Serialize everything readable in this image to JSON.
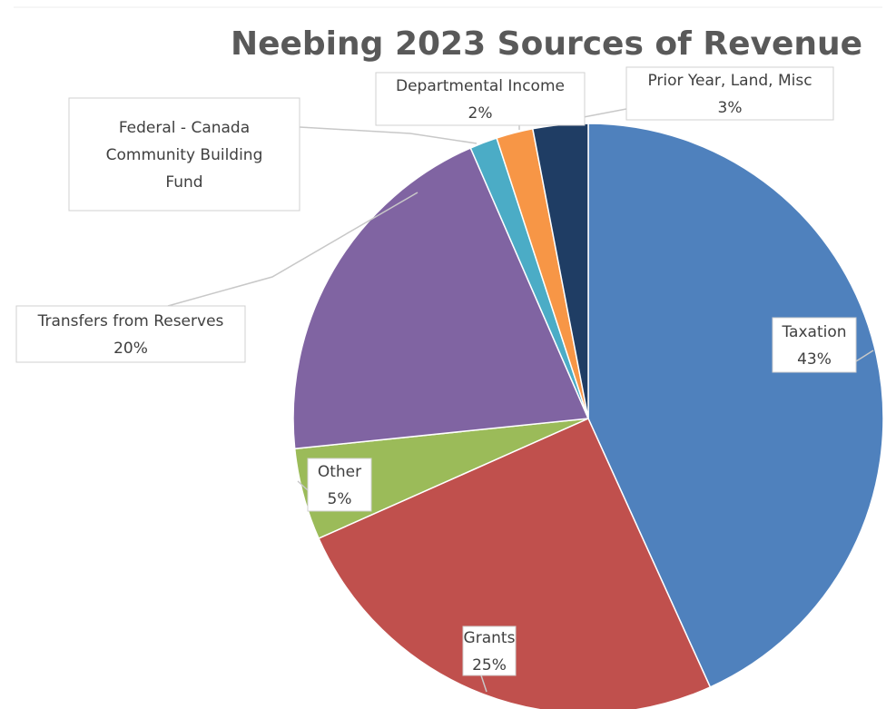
{
  "chart_data": {
    "type": "pie",
    "title": "Neebing 2023 Sources of Revenue",
    "start_angle_deg": 0,
    "direction": "clockwise",
    "slices": [
      {
        "label": "Taxation",
        "label_lines": [
          "Taxation"
        ],
        "value": 43,
        "value_label": "43%",
        "color": "#4f81bd"
      },
      {
        "label": "Grants",
        "label_lines": [
          "Grants"
        ],
        "value": 25,
        "value_label": "25%",
        "color": "#c0504d"
      },
      {
        "label": "Other",
        "label_lines": [
          "Other"
        ],
        "value": 5,
        "value_label": "5%",
        "color": "#9bbb59"
      },
      {
        "label": "Transfers from Reserves",
        "label_lines": [
          "Transfers from Reserves"
        ],
        "value": 20,
        "value_label": "20%",
        "color": "#8064a2"
      },
      {
        "label": "Federal - Canada Community Building Fund",
        "label_lines": [
          "Federal - Canada",
          "Community Building",
          "Fund"
        ],
        "value": 1.5,
        "value_label": "",
        "color": "#4bacc6"
      },
      {
        "label": "Departmental Income",
        "label_lines": [
          "Departmental Income"
        ],
        "value": 2,
        "value_label": "2%",
        "color": "#f79646"
      },
      {
        "label": "Prior Year, Land, Misc",
        "label_lines": [
          "Prior Year, Land, Misc"
        ],
        "value": 3,
        "value_label": "3%",
        "color": "#1f3d64"
      }
    ]
  }
}
